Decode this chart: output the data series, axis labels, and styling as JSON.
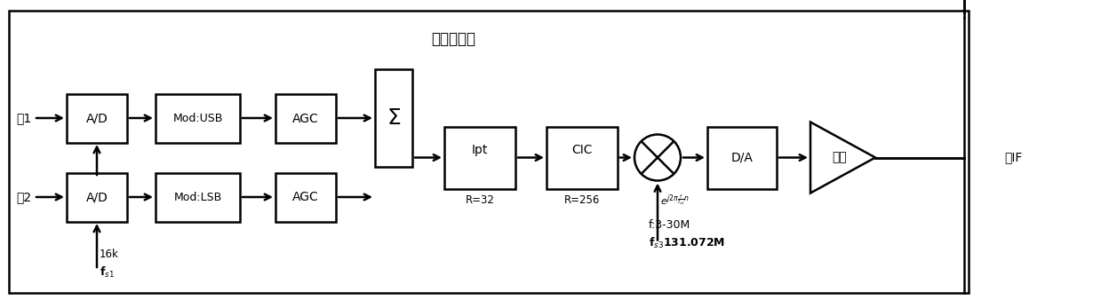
{
  "title": "零中频激励",
  "line1_label": "线1",
  "line2_label": "线2",
  "noIF_label": "无IF",
  "fs1_16k": "16k",
  "fs1_label": "$\\mathbf{f}_{s1}$",
  "freq_label": "f:3-30M",
  "fs3_label": "$\\mathbf{f}_{s3}$131.072M",
  "sigma_label": "$\\Sigma$",
  "bg": "#ffffff"
}
